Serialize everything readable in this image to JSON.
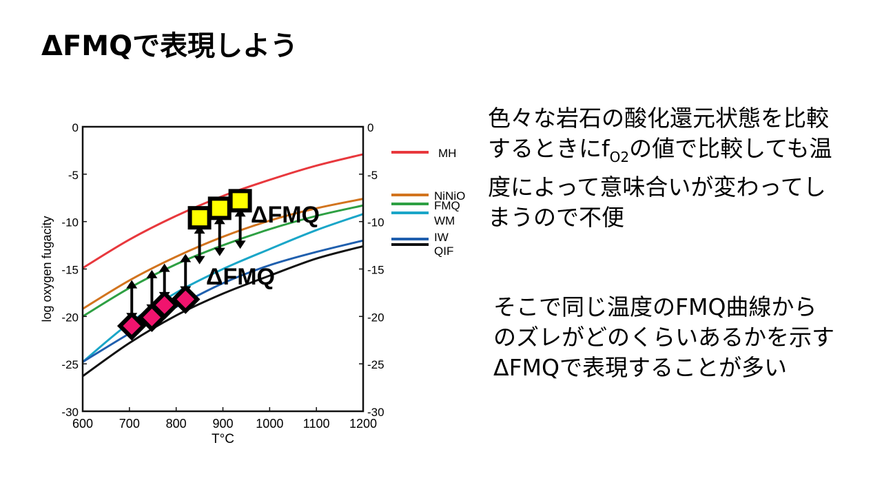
{
  "title": "ΔFMQで表現しよう",
  "text_block_1": {
    "line1": "色々な岩石の酸化還元状態を比較",
    "line2_pre": "するときにf",
    "line2_sub": "O2",
    "line2_post": "の値で比較しても温",
    "line3": "度によって意味合いが変わってし",
    "line4": "まうので不便"
  },
  "text_block_2": {
    "line1": "そこで同じ温度のFMQ曲線から",
    "line2": "のズレがどのくらいあるかを示す",
    "line3": "ΔFMQで表現することが多い"
  },
  "chart_data": {
    "type": "line",
    "xlabel": "T°C",
    "ylabel": "log oxygen fugacity",
    "xlim": [
      600,
      1200
    ],
    "ylim": [
      -30,
      0
    ],
    "xticks": [
      600,
      700,
      800,
      900,
      1000,
      1100,
      1200
    ],
    "yticks": [
      0,
      -5,
      -10,
      -15,
      -20,
      -25,
      -30
    ],
    "legend_placement": "right",
    "x": [
      600,
      700,
      800,
      900,
      1000,
      1100,
      1200
    ],
    "series": [
      {
        "name": "MH",
        "color": "#e8383d",
        "values": [
          -14.9,
          -11.9,
          -9.4,
          -7.3,
          -5.6,
          -4.1,
          -2.9
        ]
      },
      {
        "name": "NiNiO",
        "color": "#d2741e",
        "values": [
          -19.2,
          -16.2,
          -13.7,
          -11.6,
          -9.9,
          -8.6,
          -7.6
        ]
      },
      {
        "name": "FMQ",
        "color": "#2ea043",
        "values": [
          -20.0,
          -17.0,
          -14.5,
          -12.5,
          -10.8,
          -9.4,
          -8.3
        ]
      },
      {
        "name": "WM",
        "color": "#1aa6c8",
        "values": [
          -24.8,
          -20.7,
          -17.5,
          -15.0,
          -12.9,
          -10.9,
          -9.2
        ]
      },
      {
        "name": "IW",
        "color": "#1f5fae",
        "values": [
          -24.8,
          -21.8,
          -19.0,
          -16.5,
          -14.6,
          -13.2,
          -12.0
        ]
      },
      {
        "name": "QIF",
        "color": "#111111",
        "values": [
          -26.3,
          -22.8,
          -19.9,
          -17.6,
          -15.7,
          -13.9,
          -12.6
        ]
      }
    ],
    "oxidized_samples": {
      "color": "#ffff00",
      "points": [
        [
          850,
          -9.6
        ],
        [
          893,
          -8.6
        ],
        [
          937,
          -7.8
        ]
      ]
    },
    "reduced_samples": {
      "color": "#f0146e",
      "points": [
        [
          705,
          -21.0
        ],
        [
          748,
          -20.1
        ],
        [
          775,
          -18.8
        ],
        [
          820,
          -18.2
        ]
      ]
    },
    "annotations": [
      "ΔFMQ",
      "ΔFMQ"
    ]
  }
}
